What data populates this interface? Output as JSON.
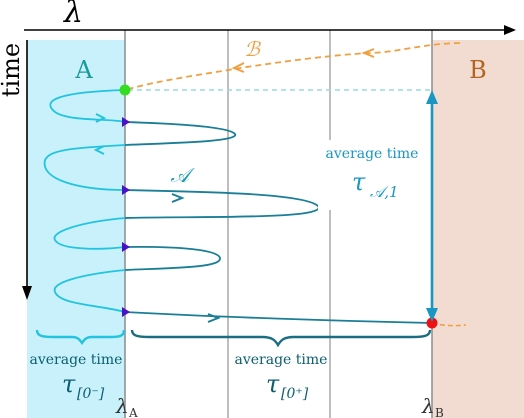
{
  "axes": {
    "horizontal_label": "λ",
    "vertical_label": "time"
  },
  "regions": {
    "A": {
      "label": "A",
      "color": "#c9f1fb"
    },
    "B": {
      "label": "B",
      "color": "#f2dcd2",
      "label_color": "#b3641f"
    }
  },
  "interfaces": {
    "lambda_A": {
      "symbol": "λ",
      "subscript": "A"
    },
    "lambda_B": {
      "symbol": "λ",
      "subscript": "B"
    }
  },
  "paths": {
    "A_path": {
      "label": "𝒜",
      "color": "#1a7e96",
      "light_color": "#22c4e0"
    },
    "B_path": {
      "label": "ℬ",
      "color": "#f0a040"
    }
  },
  "annotations": {
    "right": {
      "line1": "average time",
      "symbol": "τ",
      "subscript": "𝒜,1",
      "color": "#1996c2"
    },
    "bottom_left": {
      "line1": "average time",
      "symbol": "τ",
      "subscript": "[0⁻]"
    },
    "bottom_middle": {
      "line1": "average time",
      "symbol": "τ",
      "subscript": "[0⁺]"
    }
  },
  "markers": {
    "start_point_color": "#33dd22",
    "end_point_color": "#ee1111",
    "crossing_color": "#4a12c8"
  }
}
